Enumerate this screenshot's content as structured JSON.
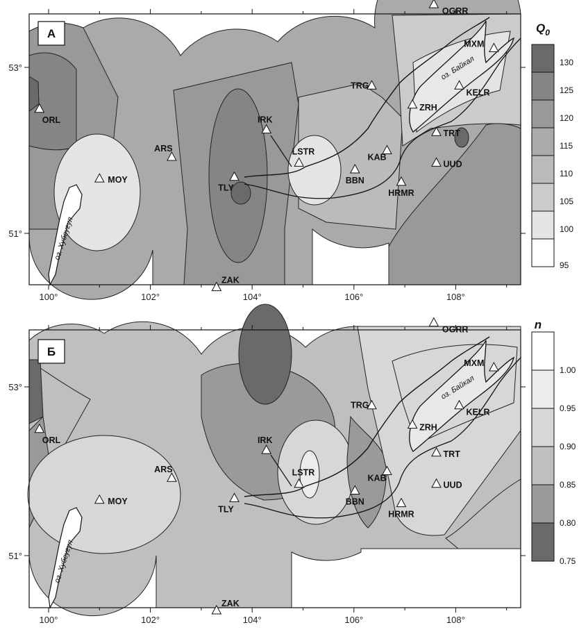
{
  "panels": [
    {
      "label": "А",
      "stations": [
        {
          "code": "OGRR",
          "lon": 107.57,
          "lat": 53.76
        },
        {
          "code": "MXM",
          "lon": 108.75,
          "lat": 53.23
        },
        {
          "code": "TRG",
          "lon": 106.35,
          "lat": 52.78
        },
        {
          "code": "KELR",
          "lon": 108.07,
          "lat": 52.78
        },
        {
          "code": "ORL",
          "lon": 99.82,
          "lat": 52.5
        },
        {
          "code": "ZRH",
          "lon": 107.15,
          "lat": 52.55
        },
        {
          "code": "IRK",
          "lon": 104.28,
          "lat": 52.25
        },
        {
          "code": "TRT",
          "lon": 107.62,
          "lat": 52.22
        },
        {
          "code": "ARS",
          "lon": 102.42,
          "lat": 51.92
        },
        {
          "code": "LSTR",
          "lon": 104.92,
          "lat": 51.85
        },
        {
          "code": "KAB",
          "lon": 106.65,
          "lat": 52.0
        },
        {
          "code": "UUD",
          "lon": 107.62,
          "lat": 51.85
        },
        {
          "code": "MOY",
          "lon": 101.0,
          "lat": 51.66
        },
        {
          "code": "TLY",
          "lon": 103.65,
          "lat": 51.68
        },
        {
          "code": "BBN",
          "lon": 106.02,
          "lat": 51.77
        },
        {
          "code": "HRMR",
          "lon": 106.93,
          "lat": 51.62
        },
        {
          "code": "ZAK",
          "lon": 103.3,
          "lat": 50.35
        }
      ],
      "legend": {
        "title": "Q",
        "title_sub": "0",
        "ticks": [
          "130",
          "125",
          "120",
          "115",
          "110",
          "105",
          "100",
          "95"
        ]
      }
    },
    {
      "label": "Б",
      "stations": [
        {
          "code": "OGRR",
          "lon": 107.57,
          "lat": 53.76
        },
        {
          "code": "MXM",
          "lon": 108.75,
          "lat": 53.23
        },
        {
          "code": "TRG",
          "lon": 106.35,
          "lat": 52.78
        },
        {
          "code": "KELR",
          "lon": 108.07,
          "lat": 52.78
        },
        {
          "code": "ORL",
          "lon": 99.82,
          "lat": 52.5
        },
        {
          "code": "ZRH",
          "lon": 107.15,
          "lat": 52.55
        },
        {
          "code": "IRK",
          "lon": 104.28,
          "lat": 52.25
        },
        {
          "code": "TRT",
          "lon": 107.62,
          "lat": 52.22
        },
        {
          "code": "ARS",
          "lon": 102.42,
          "lat": 51.92
        },
        {
          "code": "LSTR",
          "lon": 104.92,
          "lat": 51.85
        },
        {
          "code": "KAB",
          "lon": 106.65,
          "lat": 52.0
        },
        {
          "code": "UUD",
          "lon": 107.62,
          "lat": 51.85
        },
        {
          "code": "MOY",
          "lon": 101.0,
          "lat": 51.66
        },
        {
          "code": "TLY",
          "lon": 103.65,
          "lat": 51.68
        },
        {
          "code": "BBN",
          "lon": 106.02,
          "lat": 51.77
        },
        {
          "code": "HRMR",
          "lon": 106.93,
          "lat": 51.62
        },
        {
          "code": "ZAK",
          "lon": 103.3,
          "lat": 50.35
        }
      ],
      "legend": {
        "title": "n",
        "ticks": [
          "1.00",
          "0.95",
          "0.90",
          "0.85",
          "0.80",
          "0.75"
        ]
      }
    }
  ],
  "lakes": {
    "baikal": "оз. Байкал",
    "khubsugul": "оз. Хубсугул"
  },
  "axes": {
    "lon_ticks": [
      "100°",
      "102°",
      "104°",
      "106°",
      "108°"
    ],
    "lat_ticks": [
      "53°",
      "51°"
    ]
  },
  "colors": {
    "q_scale": [
      "#6a6a6a",
      "#858585",
      "#999999",
      "#aaaaaa",
      "#bbbbbb",
      "#cbcbcb",
      "#e4e4e4",
      "#ffffff"
    ],
    "n_scale": [
      "#ffffff",
      "#ececec",
      "#d7d7d7",
      "#bfbfbf",
      "#9a9a9a",
      "#6a6a6a"
    ]
  }
}
